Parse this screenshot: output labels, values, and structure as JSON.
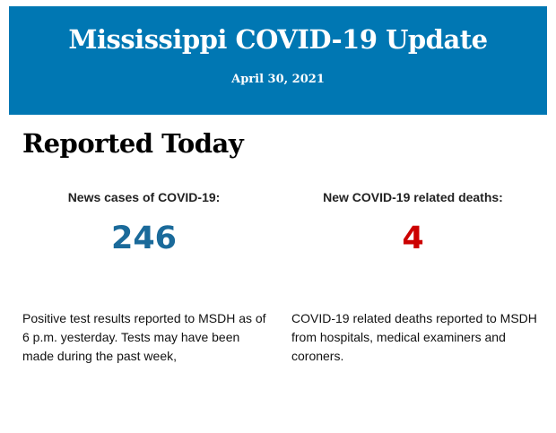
{
  "header": {
    "title": "Mississippi COVID-19 Update",
    "date": "April 30, 2021",
    "bg_color": "#0077b3"
  },
  "section_title": "Reported Today",
  "cases": {
    "label": "News cases of COVID-19:",
    "value": "246",
    "color": "#1a6a9a",
    "description": "Positive test results reported to MSDH as of 6 p.m. yesterday. Tests may have been made during the past week,"
  },
  "deaths": {
    "label": "New COVID-19 related deaths:",
    "value": "4",
    "color": "#cc0000",
    "description": "COVID-19 related deaths reported to MSDH from hospitals, medical examiners and coroners."
  }
}
